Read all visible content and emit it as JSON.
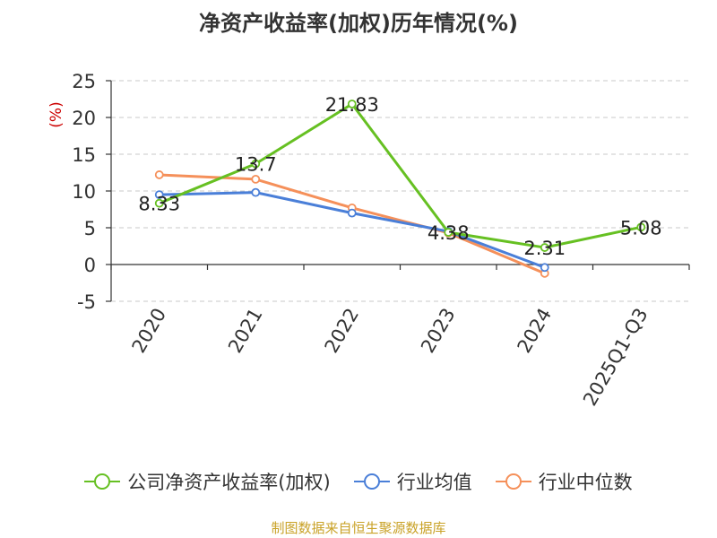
{
  "chart_data": {
    "type": "line",
    "title": "净资产收益率(加权)历年情况(%)",
    "ylabel": "(%)",
    "categories": [
      "2020",
      "2021",
      "2022",
      "2023",
      "2024",
      "2025Q1-Q3"
    ],
    "ylim": [
      -5,
      25
    ],
    "yticks": [
      25,
      20,
      15,
      10,
      5,
      0,
      -5
    ],
    "grid": true,
    "legend_position": "bottom",
    "series": [
      {
        "name": "公司净资产收益率(加权)",
        "color": "#66c022",
        "values": [
          8.33,
          13.7,
          21.83,
          4.38,
          2.31,
          5.08
        ],
        "labels": [
          "8.33",
          "13.7",
          "21.83",
          "4.38",
          "2.31",
          "5.08"
        ]
      },
      {
        "name": "行业均值",
        "color": "#4a7fd8",
        "values": [
          9.5,
          9.8,
          7.0,
          4.5,
          -0.4,
          null
        ]
      },
      {
        "name": "行业中位数",
        "color": "#f5905a",
        "values": [
          12.2,
          11.6,
          7.7,
          4.3,
          -1.2,
          null
        ]
      }
    ]
  },
  "source": "制图数据来自恒生聚源数据库"
}
